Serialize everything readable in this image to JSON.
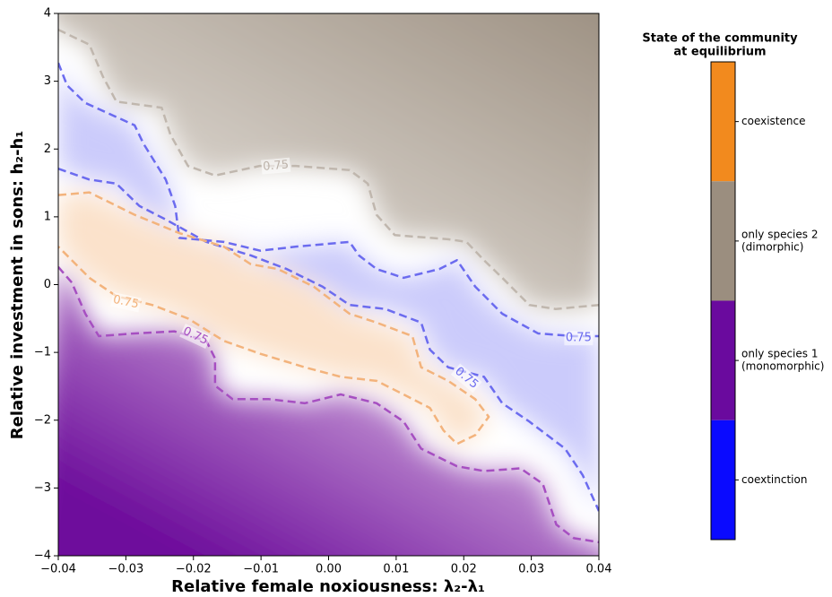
{
  "chart_data": {
    "type": "contour",
    "xlabel": "Relative female noxiousness: λ₂-λ₁",
    "ylabel": "Relative investment in sons: h₂-h₁",
    "xlim": [
      -0.04,
      0.04
    ],
    "ylim": [
      -4,
      4
    ],
    "xticks": [
      {
        "value": -0.04,
        "label": "−0.04"
      },
      {
        "value": -0.03,
        "label": "−0.03"
      },
      {
        "value": -0.02,
        "label": "−0.02"
      },
      {
        "value": -0.01,
        "label": "−0.01"
      },
      {
        "value": 0,
        "label": "0.00"
      },
      {
        "value": 0.01,
        "label": "0.01"
      },
      {
        "value": 0.02,
        "label": "0.02"
      },
      {
        "value": 0.03,
        "label": "0.03"
      },
      {
        "value": 0.04,
        "label": "0.04"
      }
    ],
    "yticks": [
      {
        "value": -4,
        "label": "−4"
      },
      {
        "value": -3,
        "label": "−3"
      },
      {
        "value": -2,
        "label": "−2"
      },
      {
        "value": -1,
        "label": "−1"
      },
      0,
      1,
      2,
      3,
      4
    ],
    "contours": [
      {
        "color": "#c0b7ae",
        "x": [
          -0.04,
          -0.0354,
          -0.0334,
          -0.0314,
          -0.0247,
          -0.0234,
          -0.0208,
          -0.0168,
          -0.0102,
          -0.0048,
          0.0031,
          0.0058,
          0.0071,
          0.0098,
          0.0177,
          0.0204,
          0.023,
          0.0257,
          0.0297,
          0.0336,
          0.04
        ],
        "y": [
          3.76,
          3.54,
          3.07,
          2.7,
          2.61,
          2.21,
          1.75,
          1.61,
          1.75,
          1.75,
          1.69,
          1.49,
          1.03,
          0.73,
          0.67,
          0.63,
          0.36,
          0.1,
          -0.3,
          -0.36,
          -0.3
        ]
      },
      {
        "color": "#6b6bef",
        "x": [
          -0.04,
          -0.0387,
          -0.036,
          -0.0287,
          -0.0274,
          -0.0241,
          -0.0227,
          -0.0221,
          -0.0155,
          -0.0101,
          -0.0048,
          0.0031,
          0.0045,
          0.0071,
          0.0111,
          0.0164,
          0.019,
          0.0217,
          0.0257,
          0.031,
          0.0363,
          0.04
        ],
        "y": [
          3.27,
          2.94,
          2.68,
          2.35,
          2.08,
          1.55,
          1.16,
          0.69,
          0.63,
          0.5,
          0.56,
          0.63,
          0.43,
          0.23,
          0.1,
          0.23,
          0.36,
          -0.03,
          -0.43,
          -0.72,
          -0.76,
          -0.76
        ]
      },
      {
        "color": "#6b6bef",
        "x": [
          -0.04,
          -0.0354,
          -0.0314,
          -0.028,
          -0.0241,
          -0.0181,
          -0.0115,
          -0.0062,
          -0.0009,
          0.0031,
          0.0084,
          0.0137,
          0.015,
          0.0177,
          0.023,
          0.0257,
          0.0297,
          0.035,
          0.0376,
          0.04
        ],
        "y": [
          1.71,
          1.55,
          1.49,
          1.16,
          0.96,
          0.63,
          0.43,
          0.23,
          -0.03,
          -0.3,
          -0.36,
          -0.56,
          -0.96,
          -1.22,
          -1.36,
          -1.75,
          -2.02,
          -2.42,
          -2.81,
          -3.34
        ]
      },
      {
        "color": "#f3b37c",
        "x": [
          -0.04,
          -0.0354,
          -0.0287,
          -0.0221,
          -0.0155,
          -0.0115,
          -0.0075,
          -0.0022,
          0.0031,
          0.0071,
          0.0124,
          0.0137,
          0.0177,
          0.0217,
          0.0237,
          0.0217,
          0.019,
          0.017,
          0.015,
          0.0111,
          0.0071,
          0.0018,
          -0.0035,
          -0.0101,
          -0.0155,
          -0.0208,
          -0.0261,
          -0.0314,
          -0.0354,
          -0.04
        ],
        "y": [
          1.32,
          1.36,
          1.03,
          0.76,
          0.56,
          0.3,
          0.23,
          -0.03,
          -0.43,
          -0.56,
          -0.76,
          -1.22,
          -1.42,
          -1.69,
          -1.95,
          -2.22,
          -2.35,
          -2.15,
          -1.82,
          -1.62,
          -1.42,
          -1.36,
          -1.22,
          -1.02,
          -0.83,
          -0.5,
          -0.3,
          -0.17,
          0.1,
          0.56
        ]
      },
      {
        "color": "#a64fc1",
        "x": [
          -0.04,
          -0.038,
          -0.036,
          -0.034,
          -0.0287,
          -0.0228,
          -0.0181,
          -0.0168,
          -0.0168,
          -0.0142,
          -0.0088,
          -0.0035,
          0.0018,
          0.0071,
          0.0111,
          0.0137,
          0.019,
          0.023,
          0.0284,
          0.0317,
          0.0337,
          0.0363,
          0.04
        ],
        "y": [
          0.26,
          0.03,
          -0.43,
          -0.76,
          -0.72,
          -0.69,
          -0.83,
          -1.09,
          -1.49,
          -1.69,
          -1.69,
          -1.75,
          -1.62,
          -1.75,
          -2.02,
          -2.42,
          -2.68,
          -2.75,
          -2.71,
          -2.94,
          -3.54,
          -3.74,
          -3.8
        ]
      }
    ],
    "contour_labels": [
      {
        "text": "0.75",
        "x": -0.0078,
        "y": 1.75,
        "color": "#bdb3aa",
        "rotate": -5
      },
      {
        "text": "0.75",
        "x": 0.037,
        "y": -0.79,
        "color": "#6b6bef",
        "rotate": 0
      },
      {
        "text": "0.75",
        "x": 0.0204,
        "y": -1.38,
        "color": "#6b6bef",
        "rotate": 40
      },
      {
        "text": "0.75",
        "x": -0.03,
        "y": -0.26,
        "color": "#f3b37c",
        "rotate": 12
      },
      {
        "text": "0.75",
        "x": -0.0197,
        "y": -0.76,
        "color": "#a64fc1",
        "rotate": 25
      }
    ],
    "colorbar": {
      "title": [
        "State of the community",
        "at equilibrium"
      ],
      "items": [
        {
          "label": [
            "coexistence"
          ],
          "color": "#f28a1e"
        },
        {
          "label": [
            "only species 2",
            "(dimorphic)"
          ],
          "color": "#9b8e7f"
        },
        {
          "label": [
            "only species 1",
            "(monomorphic)"
          ],
          "color": "#6a0a9e"
        },
        {
          "label": [
            "coextinction"
          ],
          "color": "#0a0aff"
        }
      ]
    }
  }
}
